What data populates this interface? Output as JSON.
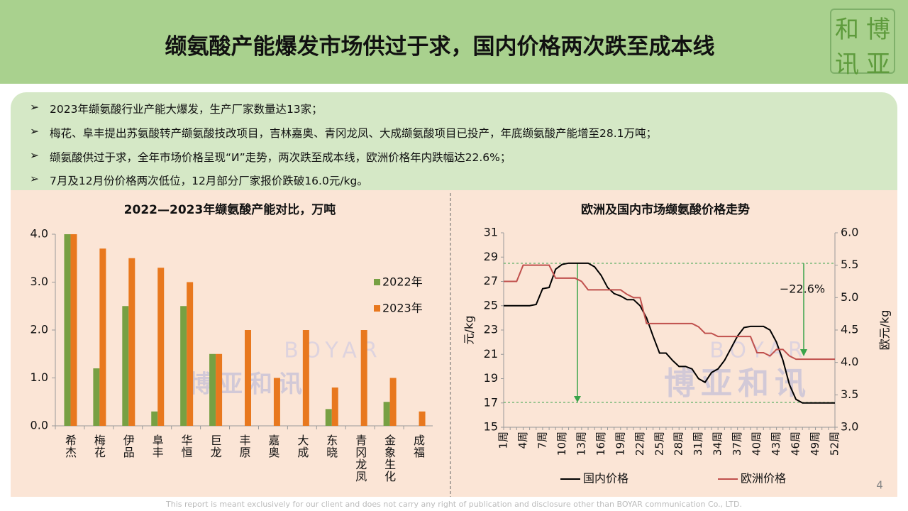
{
  "header": {
    "title": "缬氨酸产能爆发市场供过于求，国内价格两次跌至成本线",
    "logo": [
      "和",
      "博",
      "讯",
      "亚"
    ]
  },
  "bullets": [
    "2023年缬氨酸行业产能大爆发，生产厂家数量达13家；",
    "梅花、阜丰提出苏氨酸转产缬氨酸技改项目，吉林嘉奥、青冈龙凤、大成缬氨酸项目已投产，年底缬氨酸产能增至28.1万吨；",
    "缬氨酸供过于求，全年市场价格呈现“И”走势，两次跌至成本线，欧洲价格年内跌幅达22.6%；",
    "7月及12月份价格两次低位，12月部分厂家报价跌破16.0元/kg。"
  ],
  "watermark": {
    "en": "BOYAR",
    "cn": "博亚和讯"
  },
  "footer": "This report is meant exclusively for our client and does not carry any right of publication and disclosure other than BOYAR communication Co., LTD.",
  "page_number": "4",
  "chart_data": [
    {
      "type": "bar",
      "title": "2022—2023年缬氨酸产能对比，万吨",
      "categories": [
        "希杰",
        "梅花",
        "伊品",
        "阜丰",
        "华恒",
        "巨龙",
        "丰原",
        "嘉奥",
        "大成",
        "东晓",
        "青冈龙凤",
        "金象生化",
        "成福"
      ],
      "series": [
        {
          "name": "2022年",
          "color": "#77a043",
          "values": [
            4.0,
            1.2,
            2.5,
            0.3,
            2.5,
            1.5,
            0,
            0,
            0,
            0.35,
            0,
            0.5,
            0
          ]
        },
        {
          "name": "2023年",
          "color": "#e8781e",
          "values": [
            4.0,
            3.7,
            3.5,
            3.3,
            3.0,
            1.5,
            2.0,
            1.0,
            2.0,
            0.8,
            2.0,
            1.0,
            0.3
          ]
        }
      ],
      "ylim": [
        0,
        4
      ],
      "yticks": [
        {
          "value": 0,
          "label": "0.0"
        },
        {
          "value": 1,
          "label": "1.0"
        },
        {
          "value": 2,
          "label": "2.0"
        },
        {
          "value": 3,
          "label": "3.0"
        },
        {
          "value": 4,
          "label": "4.0"
        }
      ],
      "legend": "right"
    },
    {
      "type": "line",
      "title": "欧洲及国内市场缬氨酸价格走势",
      "ylabel": "元/kg",
      "y2label": "欧元/kg",
      "annotation": "−22.6%",
      "categories": [
        "1周",
        null,
        null,
        "4周",
        null,
        null,
        "7周",
        null,
        null,
        "10周",
        null,
        null,
        "13周",
        null,
        null,
        "16周",
        null,
        null,
        "19周",
        null,
        null,
        "22周",
        null,
        null,
        "25周",
        null,
        null,
        "28周",
        null,
        null,
        "31周",
        null,
        null,
        "34周",
        null,
        null,
        "37周",
        null,
        null,
        "40周",
        null,
        null,
        "43周",
        null,
        null,
        "46周",
        null,
        null,
        "49周",
        null,
        null,
        "52周"
      ],
      "series": [
        {
          "name": "国内价格",
          "color": "#000000",
          "values": [
            25,
            25,
            25,
            25,
            25,
            25.1,
            26.4,
            26.5,
            28,
            28.4,
            28.5,
            28.5,
            28.5,
            28.5,
            28.2,
            27.5,
            26.5,
            26,
            25.8,
            25.5,
            25.5,
            25,
            24,
            22.5,
            21.1,
            21.1,
            20.5,
            20,
            20,
            19.8,
            19,
            18.7,
            19.5,
            19.8,
            20.5,
            21.5,
            22.5,
            23.2,
            23.3,
            23.3,
            23.3,
            23,
            22,
            20.5,
            18.5,
            17.3,
            17,
            17,
            17,
            17,
            17,
            17
          ]
        },
        {
          "name": "欧洲价格",
          "color": "#c0504d",
          "axis": "y2",
          "values": [
            5.25,
            5.25,
            5.25,
            5.5,
            5.5,
            5.5,
            5.5,
            5.5,
            5.3,
            5.3,
            5.3,
            5.3,
            5.25,
            5.12,
            5.12,
            5.12,
            5.12,
            5.12,
            5.12,
            5.05,
            5.0,
            5.0,
            4.6,
            4.6,
            4.6,
            4.6,
            4.6,
            4.6,
            4.6,
            4.6,
            4.55,
            4.45,
            4.45,
            4.4,
            4.4,
            4.4,
            4.4,
            4.4,
            4.4,
            4.15,
            4.15,
            4.1,
            4.2,
            4.2,
            4.1,
            4.05,
            4.05,
            4.05,
            4.05,
            4.05,
            4.05,
            4.05
          ]
        }
      ],
      "ylim": [
        15,
        31
      ],
      "yticks": [
        15,
        17,
        19,
        21,
        23,
        25,
        27,
        29,
        31
      ],
      "y2lim": [
        3,
        6
      ],
      "y2ticks": [
        {
          "value": 3,
          "label": "3.0"
        },
        {
          "value": 3.5,
          "label": "3.5"
        },
        {
          "value": 4,
          "label": "4.0"
        },
        {
          "value": 4.5,
          "label": "4.5"
        },
        {
          "value": 5,
          "label": "5.0"
        },
        {
          "value": 5.5,
          "label": "5.5"
        },
        {
          "value": 6,
          "label": "6.0"
        }
      ],
      "legend": "bottom"
    }
  ]
}
